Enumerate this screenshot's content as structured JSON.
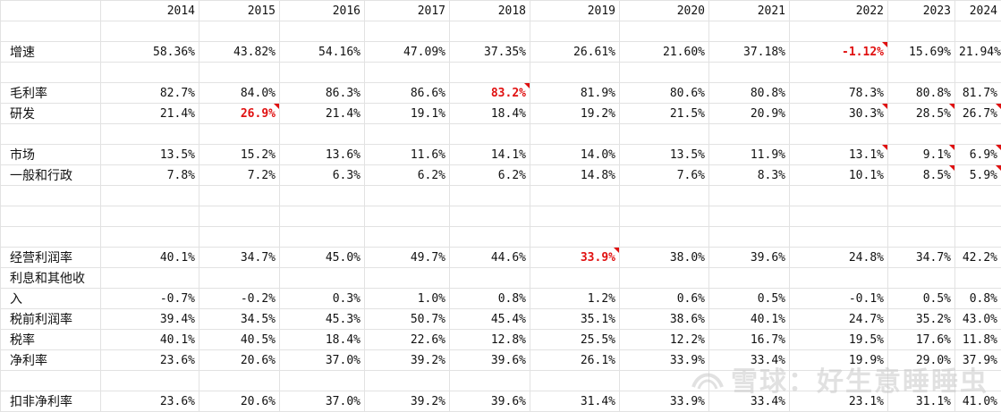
{
  "years": [
    "2014",
    "2015",
    "2016",
    "2017",
    "2018",
    "2019",
    "2020",
    "2021",
    "2022",
    "2023",
    "2024"
  ],
  "rows": [
    {
      "label": "增速",
      "values": [
        "58.36%",
        "43.82%",
        "54.16%",
        "47.09%",
        "37.35%",
        "26.61%",
        "21.60%",
        "37.18%",
        "-1.12%",
        "15.69%",
        "21.94%"
      ],
      "red": [
        8
      ],
      "flags": [
        8
      ]
    },
    {
      "label": "毛利率",
      "values": [
        "82.7%",
        "84.0%",
        "86.3%",
        "86.6%",
        "83.2%",
        "81.9%",
        "80.6%",
        "80.8%",
        "78.3%",
        "80.8%",
        "81.7%"
      ],
      "red": [
        4
      ],
      "flags": [
        4
      ]
    },
    {
      "label": "研发",
      "values": [
        "21.4%",
        "26.9%",
        "21.4%",
        "19.1%",
        "18.4%",
        "19.2%",
        "21.5%",
        "20.9%",
        "30.3%",
        "28.5%",
        "26.7%"
      ],
      "red": [
        1
      ],
      "flags": [
        1,
        8,
        9,
        10
      ]
    },
    {
      "label": "市场",
      "values": [
        "13.5%",
        "15.2%",
        "13.6%",
        "11.6%",
        "14.1%",
        "14.0%",
        "13.5%",
        "11.9%",
        "13.1%",
        "9.1%",
        "6.9%"
      ],
      "red": [],
      "flags": [
        8,
        9,
        10
      ]
    },
    {
      "label": "一般和行政",
      "values": [
        "7.8%",
        "7.2%",
        "6.3%",
        "6.2%",
        "6.2%",
        "14.8%",
        "7.6%",
        "8.3%",
        "10.1%",
        "8.5%",
        "5.9%"
      ],
      "red": [],
      "flags": [
        9,
        10
      ]
    },
    {
      "label": "经营利润率",
      "values": [
        "40.1%",
        "34.7%",
        "45.0%",
        "49.7%",
        "44.6%",
        "33.9%",
        "38.0%",
        "39.6%",
        "24.8%",
        "34.7%",
        "42.2%"
      ],
      "red": [
        5
      ],
      "flags": [
        5
      ]
    },
    {
      "label": "利息和其他收",
      "values": [
        "",
        "",
        "",
        "",
        "",
        "",
        "",
        "",
        "",
        "",
        ""
      ],
      "red": [],
      "flags": []
    },
    {
      "label": "入",
      "values": [
        "-0.7%",
        "-0.2%",
        "0.3%",
        "1.0%",
        "0.8%",
        "1.2%",
        "0.6%",
        "0.5%",
        "-0.1%",
        "0.5%",
        "0.8%"
      ],
      "red": [],
      "flags": []
    },
    {
      "label": "税前利润率",
      "values": [
        "39.4%",
        "34.5%",
        "45.3%",
        "50.7%",
        "45.4%",
        "35.1%",
        "38.6%",
        "40.1%",
        "24.7%",
        "35.2%",
        "43.0%"
      ],
      "red": [],
      "flags": []
    },
    {
      "label": "税率",
      "values": [
        "40.1%",
        "40.5%",
        "18.4%",
        "22.6%",
        "12.8%",
        "25.5%",
        "12.2%",
        "16.7%",
        "19.5%",
        "17.6%",
        "11.8%"
      ],
      "red": [],
      "flags": []
    },
    {
      "label": "净利率",
      "values": [
        "23.6%",
        "20.6%",
        "37.0%",
        "39.2%",
        "39.6%",
        "26.1%",
        "33.9%",
        "33.4%",
        "19.9%",
        "29.0%",
        "37.9%"
      ],
      "red": [],
      "flags": []
    },
    {
      "label": "扣非净利率",
      "values": [
        "23.6%",
        "20.6%",
        "37.0%",
        "39.2%",
        "39.6%",
        "31.4%",
        "33.9%",
        "33.4%",
        "23.1%",
        "31.1%",
        "41.0%"
      ],
      "red": [],
      "flags": []
    }
  ],
  "layout_rows": [
    "header",
    "blank",
    "r0",
    "blank",
    "r1",
    "r2",
    "blank",
    "r3",
    "r4",
    "blank",
    "blank",
    "blank",
    "r5",
    "r6",
    "r7",
    "r8",
    "r9",
    "r10",
    "blank",
    "r11"
  ],
  "watermark": {
    "text": "雪球：好生意睡睡虫",
    "icon": "snowball-logo-icon"
  },
  "colors": {
    "highlight": "#e01010",
    "grid": "#e2e2e2"
  }
}
